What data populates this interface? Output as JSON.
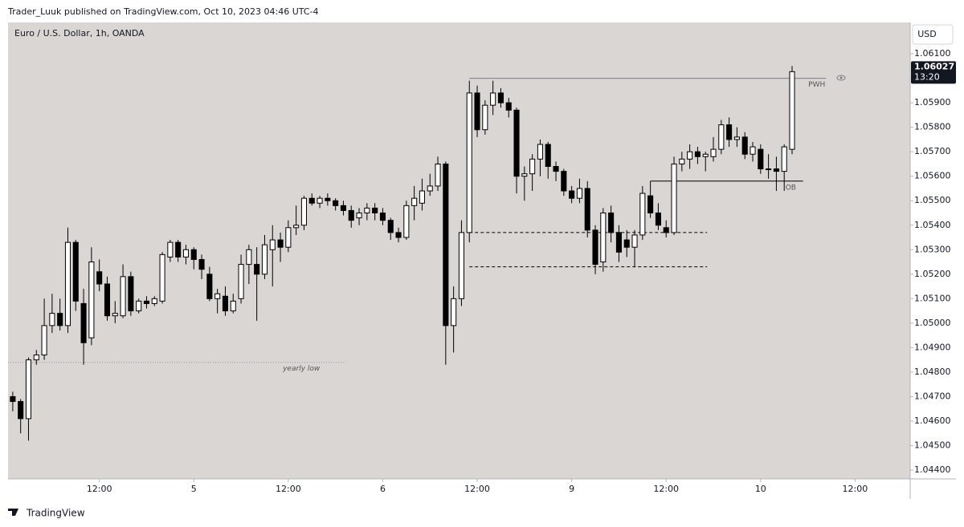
{
  "header": "Trader_Luuk published on TradingView.com, Oct 10, 2023 04:46 UTC-4",
  "footer": "TradingView",
  "chart_data": {
    "type": "candlestick",
    "title": "Euro / U.S. Dollar, 1h, OANDA",
    "currency": "USD",
    "up_color": "#ffffff",
    "down_color": "#000000",
    "line_color": "#000000",
    "xlim": [
      -0.6,
      114
    ],
    "ylim": [
      1.04364,
      1.06228
    ],
    "xticks": [
      {
        "value": 11,
        "label": "12:00"
      },
      {
        "value": 23,
        "label": "5"
      },
      {
        "value": 35,
        "label": "12:00"
      },
      {
        "value": 47,
        "label": "6"
      },
      {
        "value": 59,
        "label": "12:00"
      },
      {
        "value": 71,
        "label": "9"
      },
      {
        "value": 83,
        "label": "12:00"
      },
      {
        "value": 95,
        "label": "10"
      },
      {
        "value": 107,
        "label": "12:00"
      }
    ],
    "yticks": [
      {
        "value": 1.044,
        "label": "1.04400"
      },
      {
        "value": 1.045,
        "label": "1.04500"
      },
      {
        "value": 1.046,
        "label": "1.04600"
      },
      {
        "value": 1.047,
        "label": "1.04700"
      },
      {
        "value": 1.048,
        "label": "1.04800"
      },
      {
        "value": 1.049,
        "label": "1.04900"
      },
      {
        "value": 1.05,
        "label": "1.05000"
      },
      {
        "value": 1.051,
        "label": "1.05100"
      },
      {
        "value": 1.052,
        "label": "1.05200"
      },
      {
        "value": 1.053,
        "label": "1.05300"
      },
      {
        "value": 1.054,
        "label": "1.05400"
      },
      {
        "value": 1.055,
        "label": "1.05500"
      },
      {
        "value": 1.056,
        "label": "1.05600"
      },
      {
        "value": 1.057,
        "label": "1.05700"
      },
      {
        "value": 1.058,
        "label": "1.05800"
      },
      {
        "value": 1.059,
        "label": "1.05900"
      },
      {
        "value": 1.06,
        "label": "1.06000"
      },
      {
        "value": 1.061,
        "label": "1.06100"
      }
    ],
    "open": [
      1.047,
      1.0468,
      1.0461,
      1.0485,
      1.0487,
      1.0499,
      1.0504,
      1.0499,
      1.0533,
      1.0508,
      1.0494,
      1.0521,
      1.0516,
      1.0503,
      1.0503,
      1.0519,
      1.0505,
      1.0509,
      1.0508,
      1.0509,
      1.0527,
      1.0533,
      1.0527,
      1.053,
      1.0526,
      1.052,
      1.051,
      1.0511,
      1.0505,
      1.051,
      1.0524,
      1.0524,
      1.052,
      1.053,
      1.0534,
      1.0531,
      1.0539,
      1.054,
      1.0551,
      1.0549,
      1.0551,
      1.055,
      1.0548,
      1.0546,
      1.0543,
      1.0545,
      1.0547,
      1.0545,
      1.0542,
      1.0537,
      1.0535,
      1.0548,
      1.0549,
      1.0554,
      1.0556,
      1.0565,
      1.0499,
      1.051,
      1.0537,
      1.0594,
      1.0579,
      1.0589,
      1.0594,
      1.059,
      1.0587,
      1.056,
      1.0561,
      1.0567,
      1.0573,
      1.0564,
      1.0562,
      1.0554,
      1.0551,
      1.0555,
      1.0538,
      1.0525,
      1.0545,
      1.0537,
      1.0534,
      1.0531,
      1.0536,
      1.0552,
      1.0545,
      1.0539,
      1.0537,
      1.0565,
      1.0567,
      1.057,
      1.0568,
      1.0568,
      1.0571,
      1.0581,
      1.0575,
      1.0576,
      1.0569,
      1.0571,
      1.0563,
      1.0563,
      1.0562,
      1.0571
    ],
    "high": [
      1.0472,
      1.0469,
      1.0486,
      1.0489,
      1.051,
      1.0512,
      1.051,
      1.0539,
      1.0534,
      1.0514,
      1.0531,
      1.0526,
      1.0519,
      1.0509,
      1.0524,
      1.0521,
      1.051,
      1.0511,
      1.0511,
      1.0529,
      1.0534,
      1.0534,
      1.0532,
      1.0531,
      1.0528,
      1.0523,
      1.0514,
      1.0515,
      1.0512,
      1.0528,
      1.0532,
      1.0531,
      1.0536,
      1.054,
      1.0537,
      1.0542,
      1.0548,
      1.0552,
      1.0553,
      1.0552,
      1.0553,
      1.0551,
      1.055,
      1.0548,
      1.0547,
      1.0549,
      1.0549,
      1.0547,
      1.0543,
      1.0539,
      1.055,
      1.0556,
      1.0559,
      1.0561,
      1.0568,
      1.0566,
      1.0515,
      1.0542,
      1.0599,
      1.0597,
      1.0591,
      1.0599,
      1.0596,
      1.0592,
      1.0588,
      1.0564,
      1.0569,
      1.0575,
      1.0574,
      1.0566,
      1.0563,
      1.0556,
      1.0559,
      1.0558,
      1.054,
      1.0547,
      1.0548,
      1.054,
      1.0538,
      1.0538,
      1.0556,
      1.0558,
      1.0549,
      1.0542,
      1.0568,
      1.057,
      1.0573,
      1.0572,
      1.057,
      1.0576,
      1.0583,
      1.0584,
      1.058,
      1.0578,
      1.0574,
      1.0573,
      1.0569,
      1.0568,
      1.0573,
      1.0605
    ],
    "low": [
      1.0464,
      1.0455,
      1.0452,
      1.0483,
      1.0485,
      1.0496,
      1.0497,
      1.0496,
      1.0505,
      1.0483,
      1.0491,
      1.0513,
      1.0501,
      1.05,
      1.0502,
      1.0503,
      1.0504,
      1.0506,
      1.0507,
      1.0508,
      1.0525,
      1.0525,
      1.0524,
      1.0522,
      1.0518,
      1.0509,
      1.0504,
      1.0503,
      1.0504,
      1.0508,
      1.0516,
      1.0501,
      1.0518,
      1.0515,
      1.0525,
      1.0529,
      1.0536,
      1.0538,
      1.0548,
      1.0547,
      1.0548,
      1.0546,
      1.0544,
      1.0539,
      1.054,
      1.0542,
      1.0542,
      1.054,
      1.0534,
      1.0533,
      1.0534,
      1.0542,
      1.0546,
      1.0552,
      1.0554,
      1.0483,
      1.0488,
      1.0507,
      1.0533,
      1.0576,
      1.0577,
      1.0585,
      1.0588,
      1.0584,
      1.0553,
      1.055,
      1.0554,
      1.056,
      1.0559,
      1.0558,
      1.0552,
      1.0549,
      1.0549,
      1.0535,
      1.052,
      1.0521,
      1.0533,
      1.0525,
      1.0527,
      1.0523,
      1.0534,
      1.0543,
      1.0538,
      1.0535,
      1.0536,
      1.0562,
      1.0563,
      1.0565,
      1.0562,
      1.0566,
      1.0569,
      1.0572,
      1.0572,
      1.0567,
      1.0566,
      1.0561,
      1.0559,
      1.0554,
      1.0554,
      1.0569
    ],
    "close": [
      1.0468,
      1.0461,
      1.0485,
      1.0487,
      1.0499,
      1.0504,
      1.0499,
      1.0533,
      1.0509,
      1.0492,
      1.0525,
      1.0516,
      1.0503,
      1.0504,
      1.0519,
      1.0505,
      1.0509,
      1.0508,
      1.051,
      1.0528,
      1.0533,
      1.0527,
      1.053,
      1.0526,
      1.0522,
      1.051,
      1.0512,
      1.0505,
      1.0509,
      1.0524,
      1.053,
      1.052,
      1.0532,
      1.0534,
      1.0531,
      1.0539,
      1.054,
      1.0551,
      1.0549,
      1.0551,
      1.055,
      1.0548,
      1.0546,
      1.0542,
      1.0545,
      1.0547,
      1.0545,
      1.0542,
      1.0537,
      1.0535,
      1.0548,
      1.0551,
      1.0554,
      1.0556,
      1.0565,
      1.0499,
      1.051,
      1.0537,
      1.0594,
      1.0579,
      1.0589,
      1.0594,
      1.059,
      1.0587,
      1.056,
      1.0561,
      1.0567,
      1.0573,
      1.0564,
      1.0562,
      1.0554,
      1.0551,
      1.0555,
      1.0538,
      1.0524,
      1.0545,
      1.0537,
      1.0529,
      1.0531,
      1.0536,
      1.0553,
      1.0545,
      1.054,
      1.0537,
      1.0565,
      1.0567,
      1.057,
      1.0568,
      1.0569,
      1.0571,
      1.0581,
      1.0575,
      1.0576,
      1.0569,
      1.0572,
      1.0563,
      1.0563,
      1.0562,
      1.0572,
      1.06027
    ],
    "last_price": {
      "value": 1.06027,
      "countdown": "13:20"
    },
    "levels": [
      {
        "label": "PWH",
        "value": 1.06,
        "x": [
          58,
          103.3
        ],
        "style": "solid",
        "color": "#787b86"
      },
      {
        "label": "yearly low",
        "value": 1.0484,
        "x": [
          -0.6,
          42.3
        ],
        "style": "dotted",
        "color": "#9598a1"
      },
      {
        "label": "OB",
        "value": 1.0558,
        "x": [
          81,
          100.4
        ],
        "style": "solid",
        "color": "#000000"
      },
      {
        "value": 1.0537,
        "x": [
          58,
          88.2
        ],
        "style": "dashed",
        "color": "#000000"
      },
      {
        "value": 1.0523,
        "x": [
          58,
          88.2
        ],
        "style": "dashed",
        "color": "#000000"
      }
    ]
  }
}
